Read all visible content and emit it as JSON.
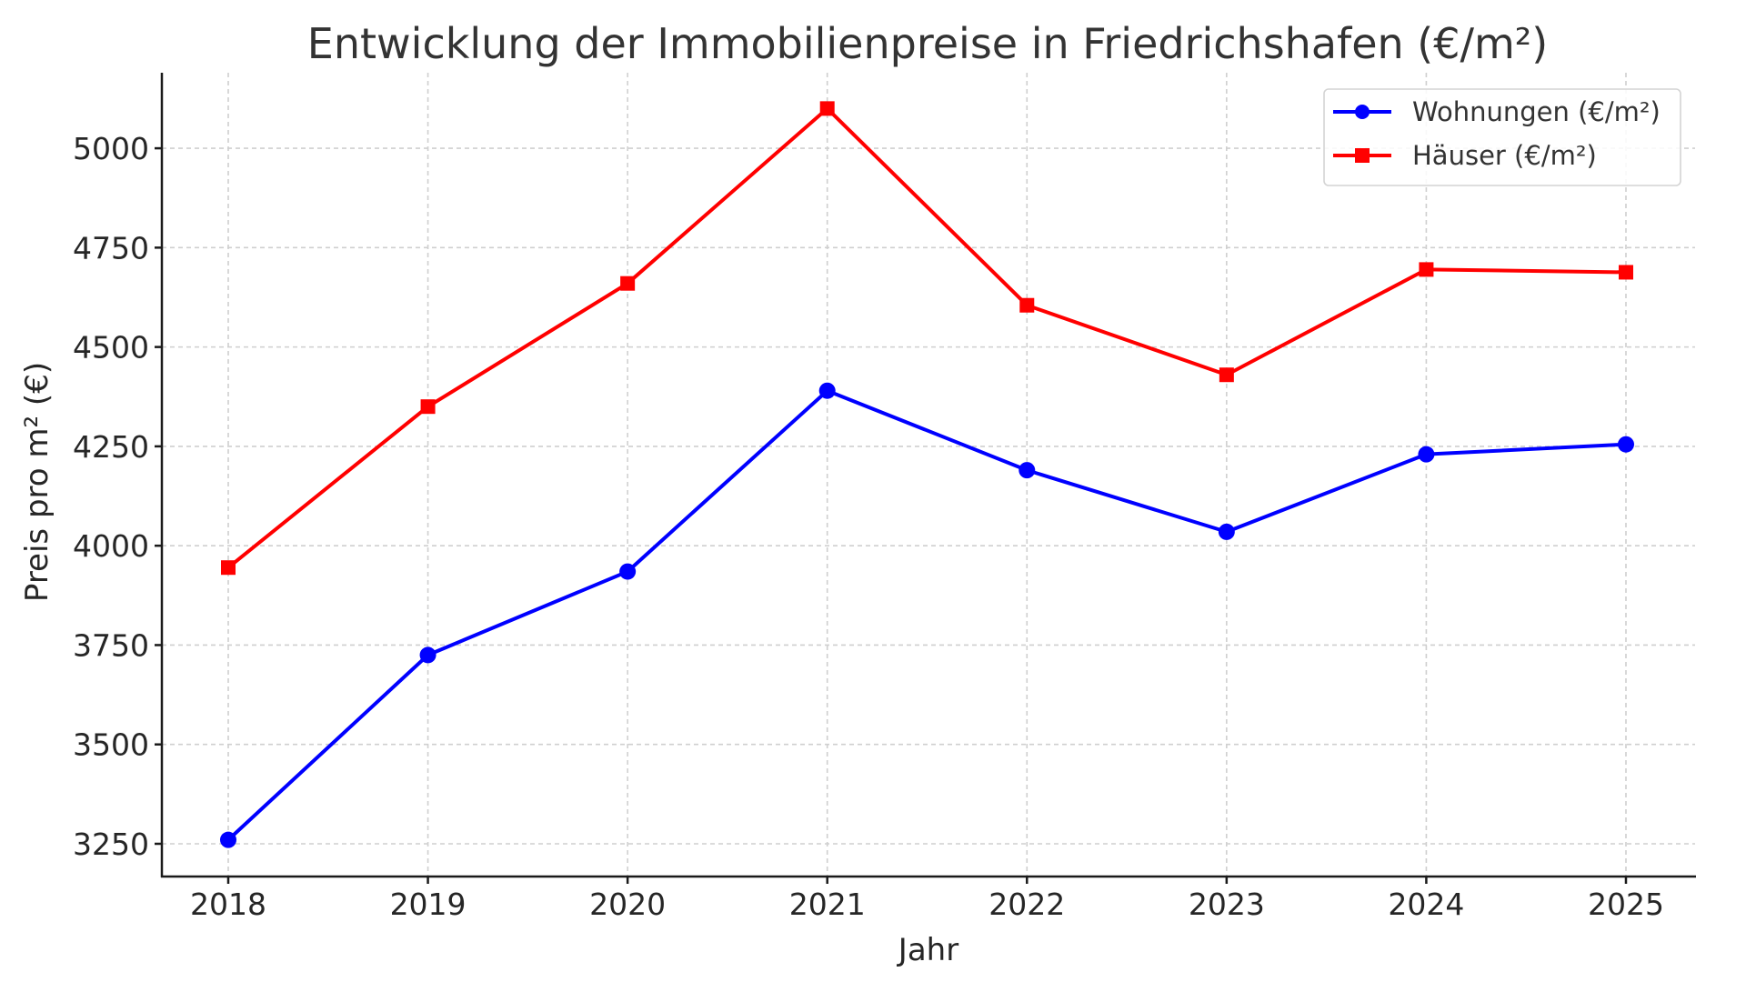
{
  "chart_data": {
    "type": "line",
    "title": "Entwicklung der Immobilienpreise in Friedrichshafen (€/m²)",
    "xlabel": "Jahr",
    "ylabel": "Preis pro m² (€)",
    "categories": [
      "2018",
      "2019",
      "2020",
      "2021",
      "2022",
      "2023",
      "2024",
      "2025"
    ],
    "series": [
      {
        "name": "Wohnungen (€/m²)",
        "color": "#0000ff",
        "marker": "circle",
        "values": [
          3260,
          3725,
          3935,
          4390,
          4190,
          4035,
          4230,
          4255
        ]
      },
      {
        "name": "Häuser (€/m²)",
        "color": "#ff0000",
        "marker": "square",
        "values": [
          3945,
          4350,
          4660,
          5100,
          4605,
          4430,
          4695,
          4688
        ]
      }
    ],
    "yticks": [
      3250,
      3500,
      3750,
      4000,
      4250,
      4500,
      4750,
      5000
    ],
    "ylim": [
      3160,
      5190
    ],
    "grid": true,
    "grid_style": "dashed",
    "legend_position": "upper right"
  }
}
